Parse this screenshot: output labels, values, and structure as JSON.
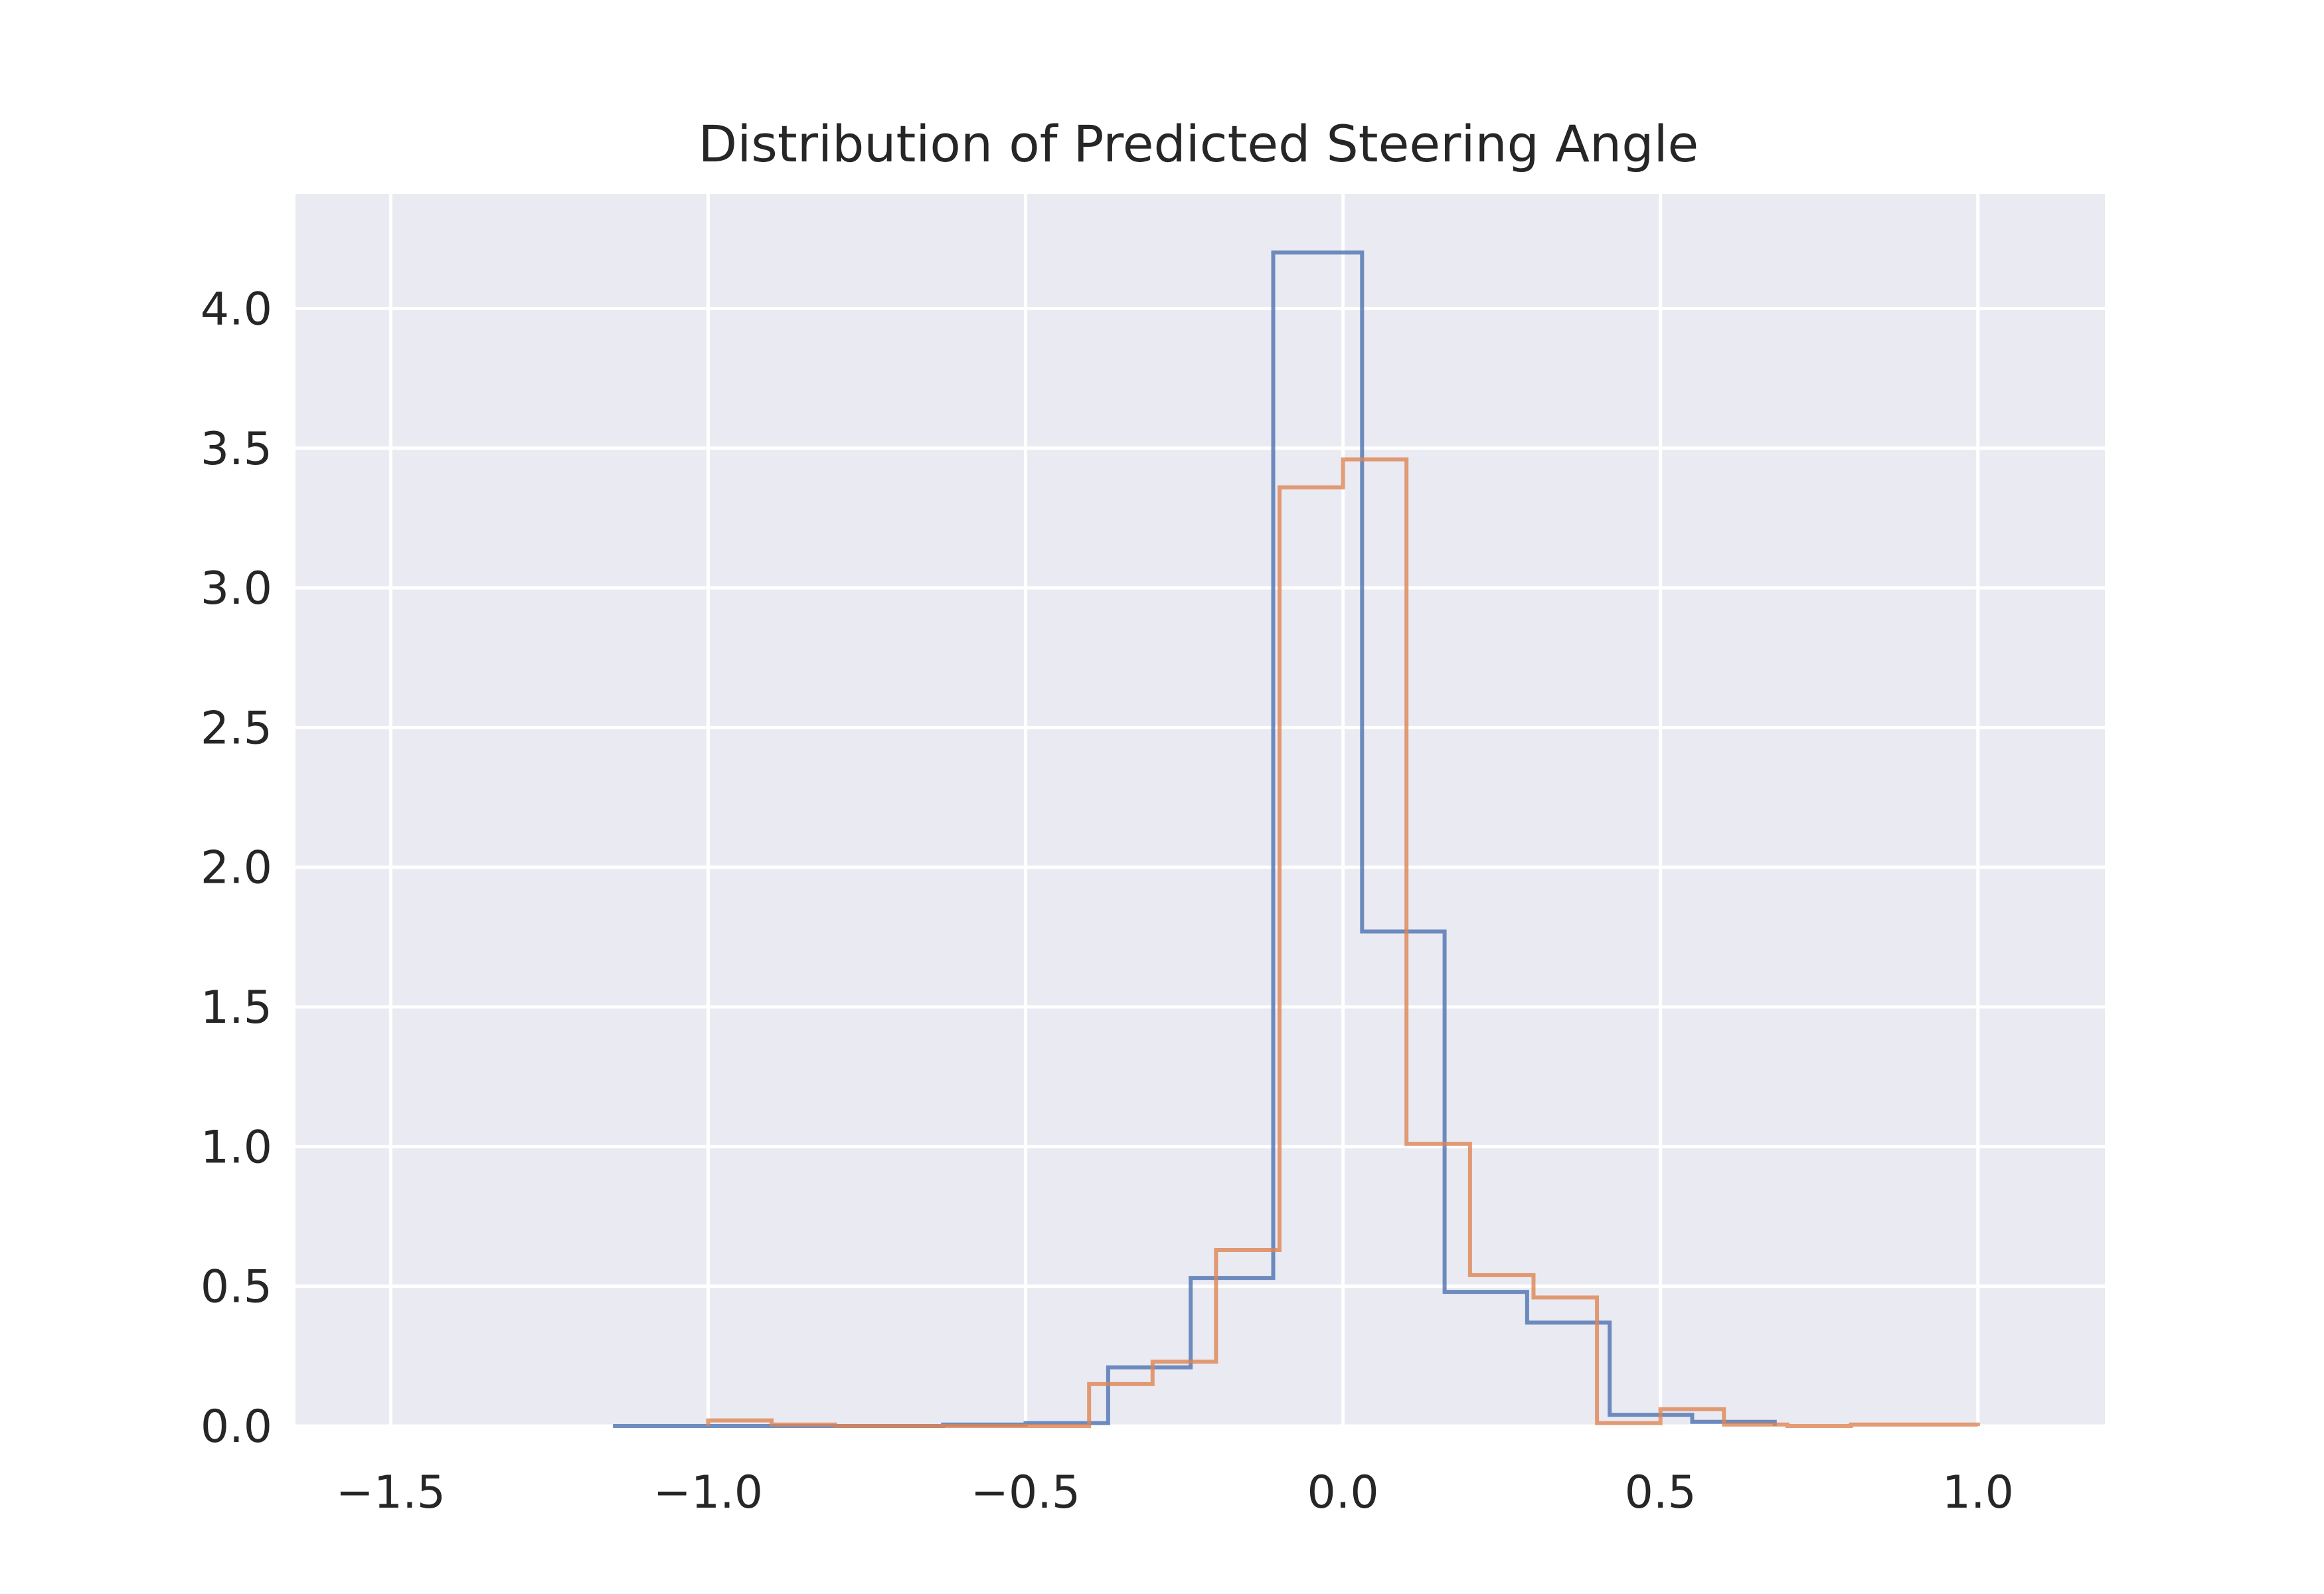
{
  "chart_data": {
    "type": "histogram-step",
    "title": "Distribution of Predicted Steering Angle",
    "xlabel": "",
    "ylabel": "",
    "xlim": [
      -1.65,
      1.2
    ],
    "ylim": [
      0,
      4.41
    ],
    "grid": true,
    "legend": "none",
    "x_ticks": [
      -1.5,
      -1.0,
      -0.5,
      0.0,
      0.5,
      1.0
    ],
    "x_tick_labels": [
      "−1.5",
      "−1.0",
      "−0.5",
      "0.0",
      "0.5",
      "1.0"
    ],
    "y_ticks": [
      0.0,
      0.5,
      1.0,
      1.5,
      2.0,
      2.5,
      3.0,
      3.5,
      4.0
    ],
    "y_tick_labels": [
      "0.0",
      "0.5",
      "1.0",
      "1.5",
      "2.0",
      "2.5",
      "3.0",
      "3.5",
      "4.0"
    ],
    "colors": {
      "background": "#EAEAF2",
      "grid": "#FFFFFF",
      "text": "#262626"
    },
    "series": [
      {
        "color": "#4C72B0",
        "bin_edges": [
          -1.15,
          -1.02,
          -0.89,
          -0.76,
          -0.63,
          -0.5,
          -0.37,
          -0.24,
          -0.11,
          0.03,
          0.16,
          0.29,
          0.42,
          0.55,
          0.68
        ],
        "density": [
          0,
          0,
          0,
          0,
          0.005,
          0.01,
          0.21,
          0.53,
          4.2,
          1.77,
          0.48,
          0.37,
          0.04,
          0.015
        ]
      },
      {
        "color": "#DD8452",
        "bin_edges": [
          -1.0,
          -0.9,
          -0.8,
          -0.7,
          -0.6,
          -0.5,
          -0.4,
          -0.3,
          -0.2,
          -0.1,
          0.0,
          0.1,
          0.2,
          0.3,
          0.4,
          0.5,
          0.6,
          0.7,
          0.8,
          0.9,
          1.0
        ],
        "density": [
          0.02,
          0.005,
          0,
          0,
          0,
          0,
          0.15,
          0.23,
          0.63,
          3.36,
          3.46,
          1.01,
          0.54,
          0.46,
          0.01,
          0.06,
          0.005,
          0,
          0.005,
          0.005
        ]
      }
    ]
  }
}
